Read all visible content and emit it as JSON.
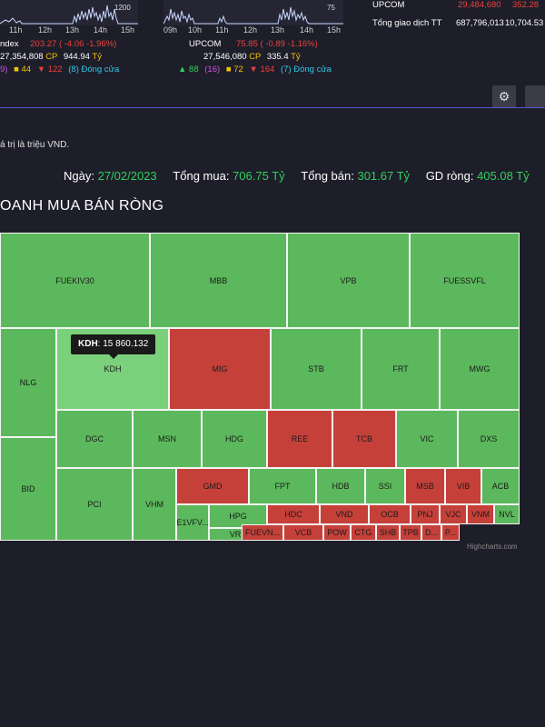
{
  "market_cards": [
    {
      "axis": [
        "11h",
        "12h",
        "13h",
        "14h",
        "15h"
      ],
      "top_label": "1200",
      "name": "ndex",
      "index_value": "203.27",
      "index_change": "( -4.06 -1.96%)",
      "volume": "27,354,808",
      "cp_label": "CP",
      "value": "944.94",
      "unit": "Tỷ",
      "up_count": "9)",
      "ceiling": "",
      "flat_count": "44",
      "down_count": "122",
      "closed": "(8) Đóng cửa"
    },
    {
      "axis": [
        "09h",
        "10h",
        "11h",
        "12h",
        "13h",
        "14h",
        "15h"
      ],
      "top_label": "75",
      "name": "UPCOM",
      "index_value": "75.85",
      "index_change": "( -0.89 -1.16%)",
      "volume": "27,546,080",
      "cp_label": "CP",
      "value": "335.4",
      "unit": "Tỷ",
      "up_count": "88",
      "ceiling": "(16)",
      "flat_count": "72",
      "down_count": "164",
      "closed": "(7) Đóng cửa"
    }
  ],
  "totals": [
    {
      "label": "UPCOM",
      "volume": "29,484,680",
      "value": "352.28"
    },
    {
      "label": "Tổng giao dịch TT",
      "volume": "687,796,013",
      "value": "10,704.53"
    }
  ],
  "unit_note": "á trị là triệu VND.",
  "summary": {
    "date_label": "Ngày:",
    "date": "27/02/2023",
    "buy_label": "Tổng mua:",
    "buy": "706.75 Tỷ",
    "sell_label": "Tổng bán:",
    "sell": "301.67 Tỷ",
    "net_label": "GD ròng:",
    "net": "405.08 Tỷ"
  },
  "section_title": "OANH MUA BÁN RÒNG",
  "tooltip": {
    "ticker": "KDH",
    "value": "15 860.132"
  },
  "credits": "Highcharts.com",
  "chart_data": {
    "type": "heatmap",
    "subtype": "treemap",
    "colors": {
      "buy": "#5cb85c",
      "sell": "#c6403a",
      "highlight": "#7bd07b"
    },
    "tiles": [
      {
        "ticker": "FUEKIV30",
        "side": "buy"
      },
      {
        "ticker": "MBB",
        "side": "buy"
      },
      {
        "ticker": "VPB",
        "side": "buy"
      },
      {
        "ticker": "FUESSVFL",
        "side": "buy"
      },
      {
        "ticker": "NLG",
        "side": "buy"
      },
      {
        "ticker": "KDH",
        "side": "buy"
      },
      {
        "ticker": "MIG",
        "side": "sell"
      },
      {
        "ticker": "STB",
        "side": "buy"
      },
      {
        "ticker": "FRT",
        "side": "buy"
      },
      {
        "ticker": "MWG",
        "side": "buy"
      },
      {
        "ticker": "BID",
        "side": "buy"
      },
      {
        "ticker": "DGC",
        "side": "buy"
      },
      {
        "ticker": "MSN",
        "side": "buy"
      },
      {
        "ticker": "HDG",
        "side": "buy"
      },
      {
        "ticker": "REE",
        "side": "sell"
      },
      {
        "ticker": "TCB",
        "side": "sell"
      },
      {
        "ticker": "VIC",
        "side": "buy"
      },
      {
        "ticker": "DXS",
        "side": "buy"
      },
      {
        "ticker": "PCI",
        "side": "buy"
      },
      {
        "ticker": "VHM",
        "side": "buy"
      },
      {
        "ticker": "GMD",
        "side": "sell"
      },
      {
        "ticker": "FPT",
        "side": "buy"
      },
      {
        "ticker": "HDB",
        "side": "buy"
      },
      {
        "ticker": "SSI",
        "side": "buy"
      },
      {
        "ticker": "MSB",
        "side": "sell"
      },
      {
        "ticker": "VIB",
        "side": "sell"
      },
      {
        "ticker": "ACB",
        "side": "buy"
      },
      {
        "ticker": "HPG",
        "side": "buy"
      },
      {
        "ticker": "E1VFV...",
        "side": "buy"
      },
      {
        "ticker": "HDC",
        "side": "sell"
      },
      {
        "ticker": "VND",
        "side": "sell"
      },
      {
        "ticker": "OCB",
        "side": "sell"
      },
      {
        "ticker": "PNJ",
        "side": "sell"
      },
      {
        "ticker": "VJC",
        "side": "sell"
      },
      {
        "ticker": "VNM",
        "side": "sell"
      },
      {
        "ticker": "NVL",
        "side": "buy"
      },
      {
        "ticker": "VRE",
        "side": "buy"
      },
      {
        "ticker": "FUEVN...",
        "side": "sell"
      },
      {
        "ticker": "VCB",
        "side": "sell"
      },
      {
        "ticker": "POW",
        "side": "sell"
      },
      {
        "ticker": "CTG",
        "side": "sell"
      },
      {
        "ticker": "SHB",
        "side": "sell"
      },
      {
        "ticker": "TPB",
        "side": "sell"
      },
      {
        "ticker": "D...",
        "side": "sell"
      },
      {
        "ticker": "P...",
        "side": "sell"
      }
    ]
  }
}
